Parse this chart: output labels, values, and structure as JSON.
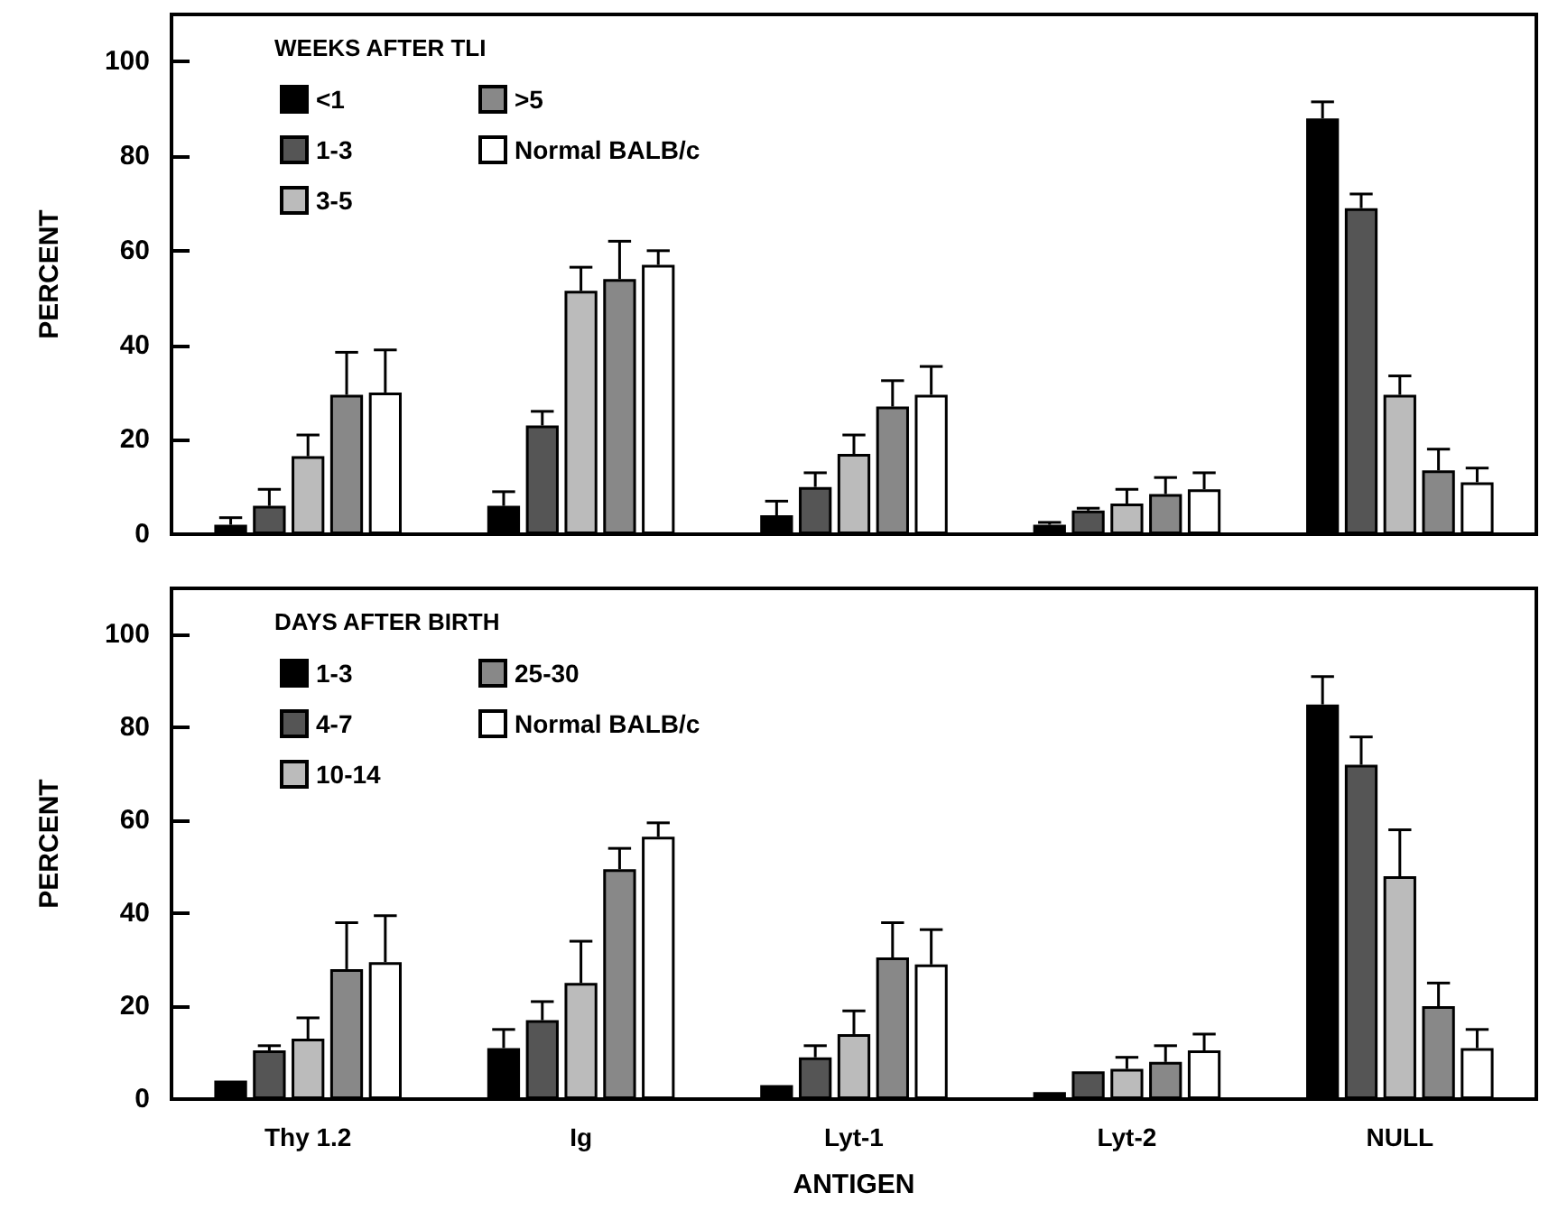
{
  "chart_data": [
    {
      "type": "bar",
      "ylabel": "PERCENT",
      "legend_title": "WEEKS AFTER TLI",
      "categories": [
        null,
        null,
        null,
        null,
        null
      ],
      "ylim": [
        0,
        110
      ],
      "yticks": [
        0,
        20,
        40,
        60,
        80,
        100
      ],
      "tick_labels": "y",
      "legend": "top left",
      "grid": false,
      "series": [
        {
          "name": "<1",
          "color": "#000000",
          "values": [
            2,
            6,
            4,
            2,
            88
          ],
          "errors": [
            1.5,
            3,
            3,
            0.5,
            3.5
          ]
        },
        {
          "name": "1-3",
          "color": "#555555",
          "values": [
            6,
            23,
            10,
            5,
            69
          ],
          "errors": [
            3.5,
            3,
            3,
            0.5,
            3
          ]
        },
        {
          "name": "3-5",
          "color": "#bbbbbb",
          "values": [
            16.5,
            51.5,
            17,
            6.5,
            29.5
          ],
          "errors": [
            4.5,
            5,
            4,
            3,
            4
          ]
        },
        {
          "name": ">5",
          "color": "#888888",
          "values": [
            29.5,
            54,
            27,
            8.5,
            13.5
          ],
          "errors": [
            9,
            8,
            5.5,
            3.5,
            4.5
          ]
        },
        {
          "name": "Normal BALB/c",
          "color": "#ffffff",
          "values": [
            30,
            57,
            29.5,
            9.5,
            11
          ],
          "errors": [
            9,
            3,
            6,
            3.5,
            3
          ]
        }
      ]
    },
    {
      "type": "bar",
      "ylabel": "PERCENT",
      "xlabel": "ANTIGEN",
      "legend_title": "DAYS AFTER BIRTH",
      "categories": [
        "Thy 1.2",
        "Ig",
        "Lyt-1",
        "Lyt-2",
        "NULL"
      ],
      "ylim": [
        0,
        110
      ],
      "yticks": [
        0,
        20,
        40,
        60,
        80,
        100
      ],
      "legend": "top left",
      "grid": false,
      "series": [
        {
          "name": "1-3",
          "color": "#000000",
          "values": [
            4,
            11,
            3,
            1.5,
            85
          ],
          "errors": [
            null,
            4,
            null,
            null,
            6
          ]
        },
        {
          "name": "4-7",
          "color": "#555555",
          "values": [
            10.5,
            17,
            9,
            6,
            72
          ],
          "errors": [
            1,
            4,
            2.5,
            null,
            6
          ]
        },
        {
          "name": "10-14",
          "color": "#bbbbbb",
          "values": [
            13,
            25,
            14,
            6.5,
            48
          ],
          "errors": [
            4.5,
            9,
            5,
            2.5,
            10
          ]
        },
        {
          "name": "25-30",
          "color": "#888888",
          "values": [
            28,
            49.5,
            30.5,
            8,
            20
          ],
          "errors": [
            10,
            4.5,
            7.5,
            3.5,
            5
          ]
        },
        {
          "name": "Normal BALB/c",
          "color": "#ffffff",
          "values": [
            29.5,
            56.5,
            29,
            10.5,
            11
          ],
          "errors": [
            10,
            3,
            7.5,
            3.5,
            4
          ]
        }
      ]
    }
  ]
}
